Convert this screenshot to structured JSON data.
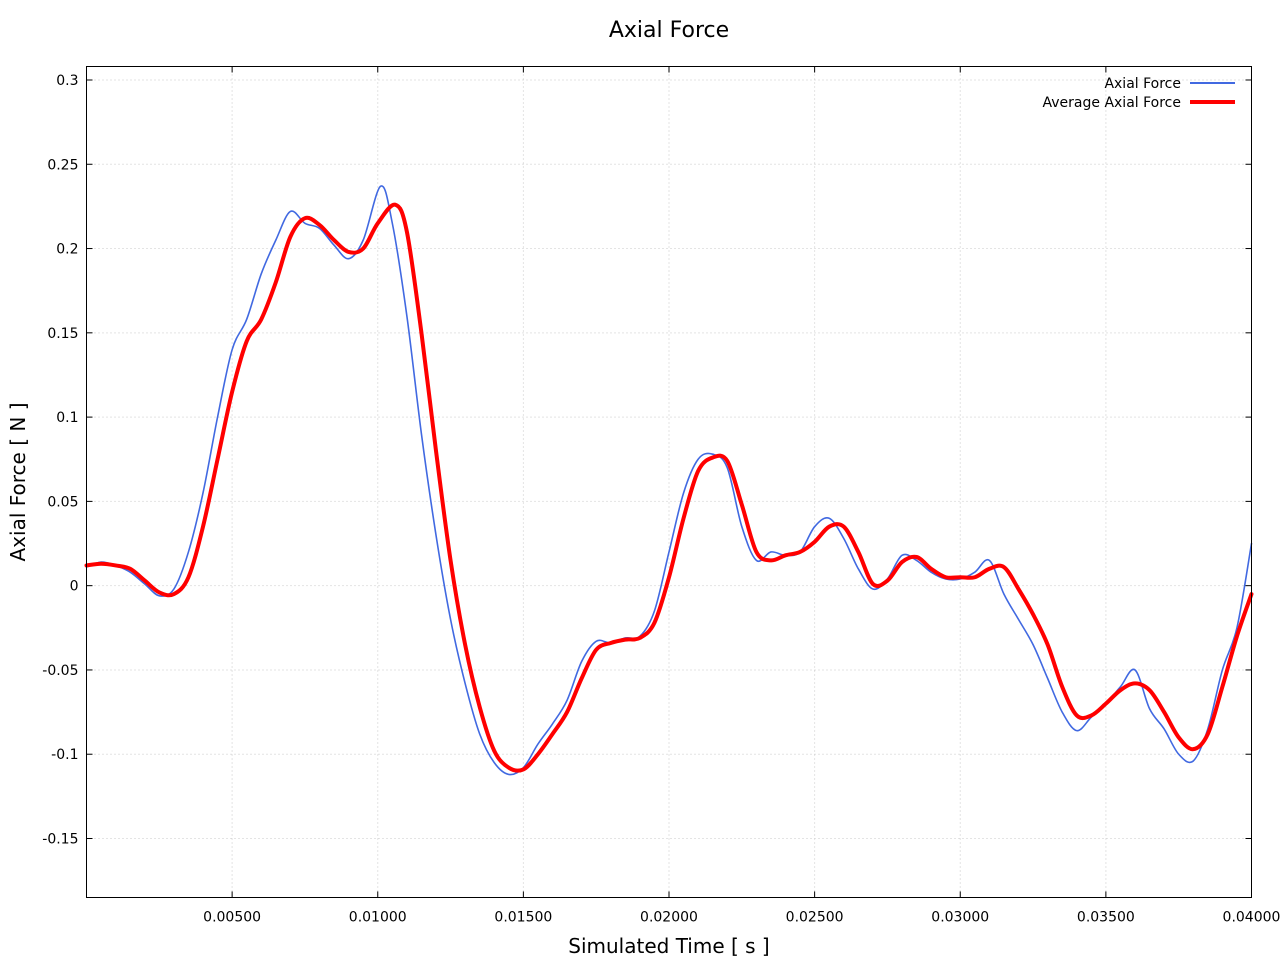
{
  "chart_data": {
    "type": "line",
    "title": "Axial Force",
    "xlabel": "Simulated Time [ s ]",
    "ylabel": "Axial Force [ N ]",
    "xlim": [
      0,
      0.04
    ],
    "ylim": [
      -0.185,
      0.308
    ],
    "grid": true,
    "legend_position": "top-right",
    "x_ticks": [
      0.005,
      0.01,
      0.015,
      0.02,
      0.025,
      0.03,
      0.035,
      0.04
    ],
    "x_tick_labels": [
      "0.00500",
      "0.01000",
      "0.01500",
      "0.02000",
      "0.02500",
      "0.03000",
      "0.03500",
      "0.04000"
    ],
    "y_ticks": [
      -0.15,
      -0.1,
      -0.05,
      0,
      0.05,
      0.1,
      0.15,
      0.2,
      0.25,
      0.3
    ],
    "y_tick_labels": [
      "-0.15",
      "-0.1",
      "-0.05",
      "0",
      "0.05",
      "0.1",
      "0.15",
      "0.2",
      "0.25",
      "0.3"
    ],
    "series": [
      {
        "name": "Axial Force",
        "color": "#4169e1",
        "x": [
          0,
          0.0005,
          0.001,
          0.0015,
          0.002,
          0.0025,
          0.003,
          0.0035,
          0.004,
          0.0045,
          0.005,
          0.0055,
          0.006,
          0.0065,
          0.007,
          0.0075,
          0.008,
          0.0085,
          0.009,
          0.0095,
          0.0101,
          0.0105,
          0.011,
          0.0115,
          0.012,
          0.0125,
          0.013,
          0.0135,
          0.014,
          0.0145,
          0.015,
          0.0155,
          0.016,
          0.0165,
          0.017,
          0.0175,
          0.018,
          0.0185,
          0.019,
          0.0195,
          0.02,
          0.0205,
          0.021,
          0.0215,
          0.022,
          0.0225,
          0.023,
          0.0235,
          0.024,
          0.0245,
          0.025,
          0.0255,
          0.026,
          0.0265,
          0.027,
          0.0275,
          0.028,
          0.0285,
          0.029,
          0.0295,
          0.03,
          0.0305,
          0.031,
          0.0315,
          0.032,
          0.0325,
          0.033,
          0.0335,
          0.034,
          0.0345,
          0.035,
          0.0355,
          0.036,
          0.0365,
          0.037,
          0.0375,
          0.038,
          0.0385,
          0.039,
          0.0395,
          0.04
        ],
        "y": [
          0.011,
          0.014,
          0.012,
          0.008,
          0.001,
          -0.006,
          -0.002,
          0.02,
          0.055,
          0.1,
          0.14,
          0.158,
          0.185,
          0.205,
          0.222,
          0.215,
          0.212,
          0.202,
          0.194,
          0.205,
          0.237,
          0.215,
          0.16,
          0.09,
          0.03,
          -0.02,
          -0.058,
          -0.088,
          -0.105,
          -0.112,
          -0.108,
          -0.094,
          -0.082,
          -0.068,
          -0.045,
          -0.033,
          -0.034,
          -0.031,
          -0.03,
          -0.015,
          0.02,
          0.055,
          0.075,
          0.078,
          0.07,
          0.035,
          0.015,
          0.02,
          0.018,
          0.02,
          0.035,
          0.04,
          0.028,
          0.01,
          -0.002,
          0.004,
          0.018,
          0.015,
          0.008,
          0.004,
          0.004,
          0.008,
          0.015,
          -0.005,
          -0.02,
          -0.035,
          -0.055,
          -0.075,
          -0.086,
          -0.078,
          -0.07,
          -0.06,
          -0.05,
          -0.073,
          -0.085,
          -0.1,
          -0.104,
          -0.085,
          -0.05,
          -0.025,
          0.025
        ]
      },
      {
        "name": "Average Axial Force",
        "color": "#ff0000",
        "x": [
          0,
          0.0005,
          0.001,
          0.0015,
          0.002,
          0.0025,
          0.003,
          0.0035,
          0.004,
          0.0045,
          0.005,
          0.0055,
          0.006,
          0.0065,
          0.007,
          0.0075,
          0.008,
          0.0085,
          0.009,
          0.0095,
          0.01,
          0.0106,
          0.011,
          0.0115,
          0.012,
          0.0125,
          0.013,
          0.0135,
          0.014,
          0.0145,
          0.015,
          0.0155,
          0.016,
          0.0165,
          0.017,
          0.0175,
          0.018,
          0.0185,
          0.019,
          0.0195,
          0.02,
          0.0205,
          0.021,
          0.0215,
          0.022,
          0.0225,
          0.023,
          0.0235,
          0.024,
          0.0245,
          0.025,
          0.0255,
          0.026,
          0.0265,
          0.027,
          0.0275,
          0.028,
          0.0285,
          0.029,
          0.0295,
          0.03,
          0.0305,
          0.031,
          0.0315,
          0.032,
          0.0325,
          0.033,
          0.0335,
          0.034,
          0.0345,
          0.035,
          0.0355,
          0.036,
          0.0365,
          0.037,
          0.0375,
          0.038,
          0.0385,
          0.039,
          0.0395,
          0.04
        ],
        "y": [
          0.012,
          0.013,
          0.012,
          0.01,
          0.003,
          -0.004,
          -0.005,
          0.005,
          0.035,
          0.075,
          0.115,
          0.145,
          0.158,
          0.18,
          0.207,
          0.218,
          0.214,
          0.205,
          0.198,
          0.2,
          0.215,
          0.226,
          0.21,
          0.15,
          0.08,
          0.015,
          -0.035,
          -0.072,
          -0.098,
          -0.108,
          -0.109,
          -0.1,
          -0.088,
          -0.075,
          -0.055,
          -0.038,
          -0.034,
          -0.032,
          -0.031,
          -0.022,
          0.005,
          0.04,
          0.068,
          0.076,
          0.074,
          0.048,
          0.02,
          0.015,
          0.018,
          0.02,
          0.026,
          0.035,
          0.035,
          0.02,
          0.001,
          0.003,
          0.014,
          0.017,
          0.01,
          0.005,
          0.005,
          0.005,
          0.01,
          0.011,
          -0.002,
          -0.017,
          -0.035,
          -0.06,
          -0.077,
          -0.077,
          -0.07,
          -0.062,
          -0.058,
          -0.062,
          -0.075,
          -0.09,
          -0.097,
          -0.088,
          -0.06,
          -0.03,
          -0.005
        ]
      }
    ]
  }
}
